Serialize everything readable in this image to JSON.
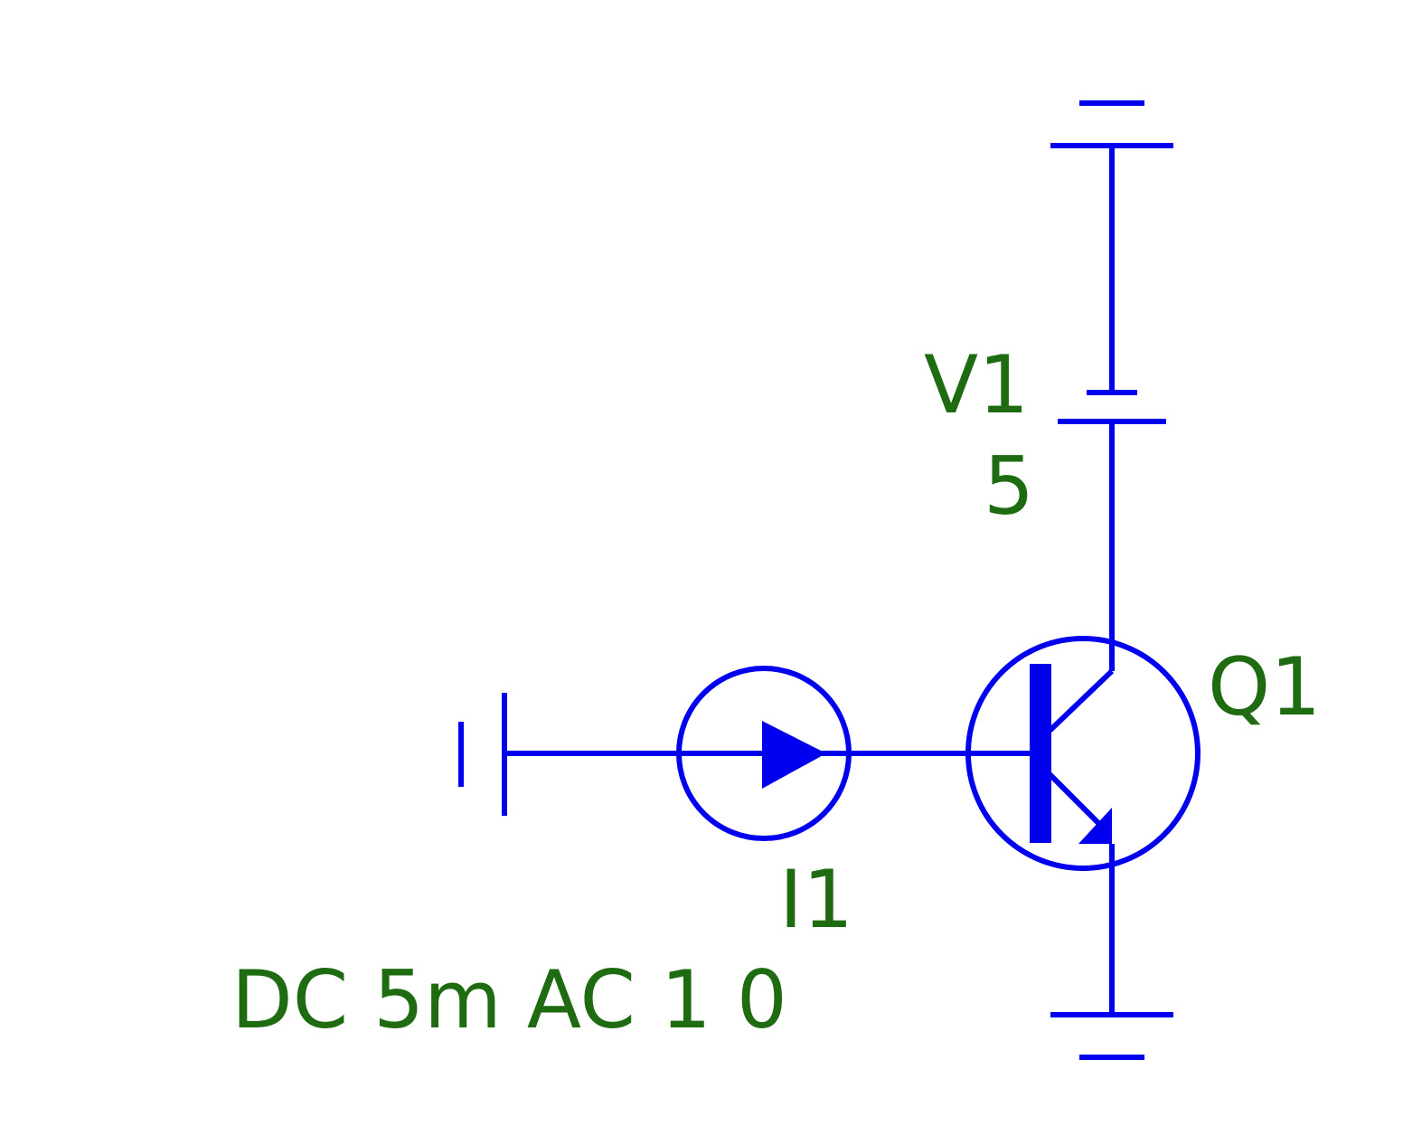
{
  "colors": {
    "wire": "#0000ee",
    "label": "#1e6b12",
    "background": "#ffffff"
  },
  "components": {
    "v1": {
      "name": "V1",
      "value": "5"
    },
    "i1": {
      "name": "I1",
      "value": "DC 5m AC 1 0"
    },
    "q1": {
      "name": "Q1"
    }
  },
  "icons": {
    "ground_top": "ground-icon",
    "ground_bottom": "ground-icon",
    "ground_left": "ground-icon",
    "battery": "battery-icon",
    "current_source": "current-source-icon",
    "transistor": "npn-transistor-icon"
  }
}
